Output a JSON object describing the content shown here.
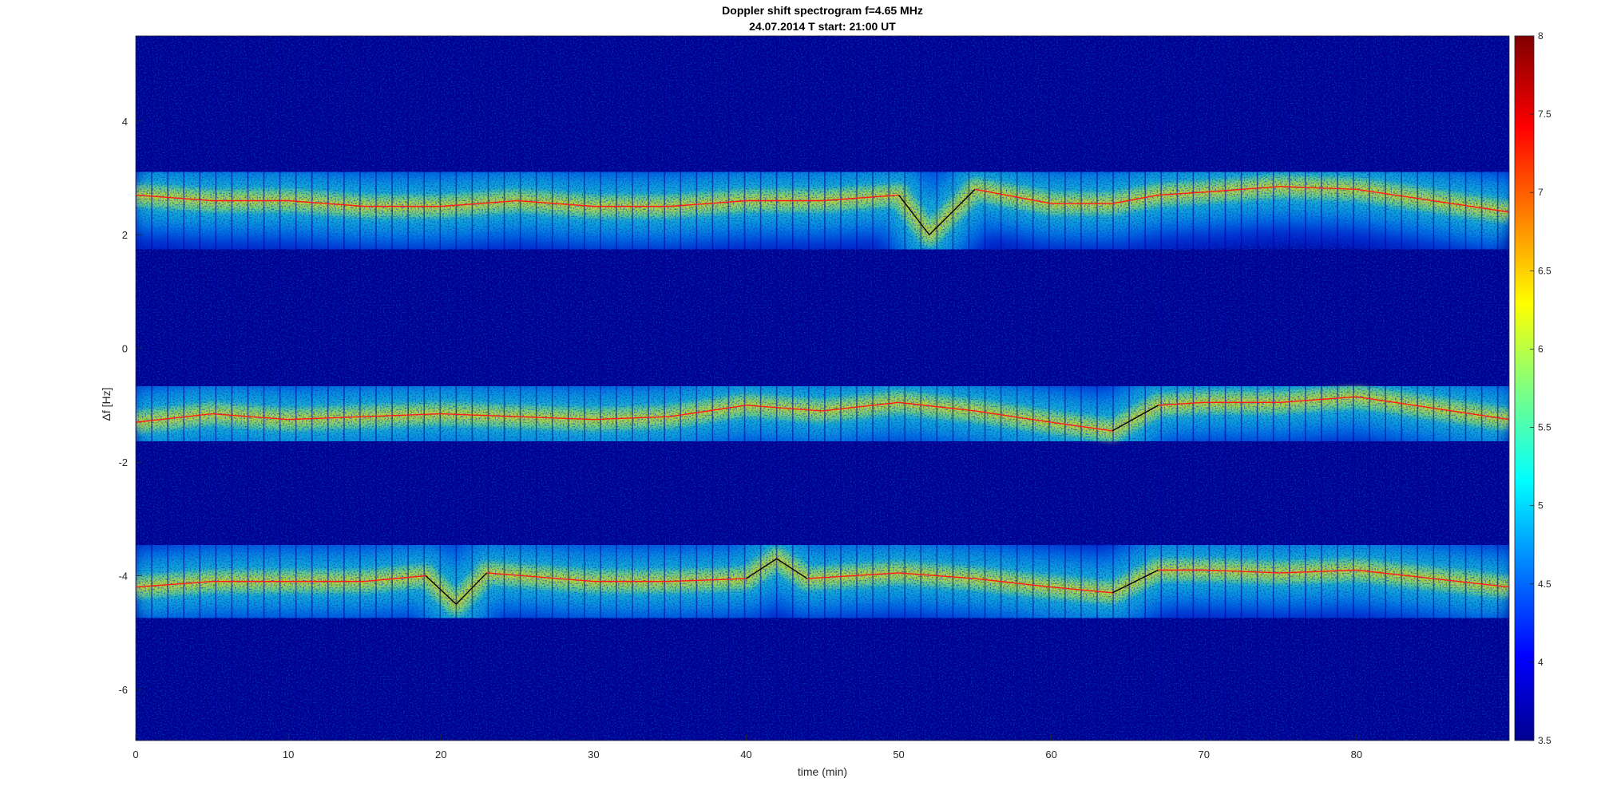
{
  "chart_data": {
    "type": "heatmap",
    "title": "Doppler shift spectrogram f=4.65 MHz",
    "subtitle": "24.07.2014   T start: 21:00 UT",
    "xlabel": "time (min)",
    "ylabel": "Δf [Hz]",
    "xlim": [
      0,
      90
    ],
    "ylim": [
      -6.9,
      5.5
    ],
    "x_ticks": [
      0,
      10,
      20,
      30,
      40,
      50,
      60,
      70,
      80
    ],
    "y_ticks": [
      -6,
      -4,
      -2,
      0,
      2,
      4
    ],
    "colorbar": {
      "colormap": "jet",
      "clim": [
        3.5,
        8
      ],
      "ticks": [
        3.5,
        4,
        4.5,
        5,
        5.5,
        6,
        6.5,
        7,
        7.5,
        8
      ]
    },
    "traces": [
      {
        "x": [
          0,
          5,
          10,
          15,
          20,
          25,
          30,
          35,
          40,
          45,
          50,
          52,
          55,
          60,
          64,
          67,
          70,
          75,
          80,
          85,
          90
        ],
        "y": [
          2.7,
          2.6,
          2.6,
          2.5,
          2.5,
          2.6,
          2.5,
          2.5,
          2.6,
          2.6,
          2.7,
          2.0,
          2.8,
          2.55,
          2.55,
          2.7,
          2.75,
          2.85,
          2.8,
          2.6,
          2.4
        ]
      },
      {
        "x": [
          0,
          5,
          10,
          15,
          20,
          25,
          30,
          35,
          40,
          45,
          50,
          55,
          60,
          64,
          67,
          70,
          75,
          80,
          85,
          90
        ],
        "y": [
          -1.3,
          -1.15,
          -1.25,
          -1.2,
          -1.15,
          -1.2,
          -1.25,
          -1.2,
          -1.0,
          -1.1,
          -0.95,
          -1.1,
          -1.3,
          -1.45,
          -1.0,
          -0.95,
          -0.95,
          -0.85,
          -1.05,
          -1.25
        ]
      },
      {
        "x": [
          0,
          5,
          10,
          15,
          19,
          21,
          23,
          30,
          35,
          40,
          42,
          44,
          50,
          55,
          60,
          64,
          67,
          70,
          75,
          80,
          85,
          90
        ],
        "y": [
          -4.2,
          -4.1,
          -4.1,
          -4.1,
          -4.0,
          -4.5,
          -3.95,
          -4.1,
          -4.1,
          -4.05,
          -3.7,
          -4.05,
          -3.95,
          -4.05,
          -4.2,
          -4.3,
          -3.9,
          -3.9,
          -3.95,
          -3.9,
          -4.05,
          -4.2
        ]
      }
    ]
  },
  "colors": {
    "jet_low": "#00008f",
    "jet_high": "#800000",
    "trace": "#ff1a1a",
    "trace_outlier": "#000000"
  }
}
